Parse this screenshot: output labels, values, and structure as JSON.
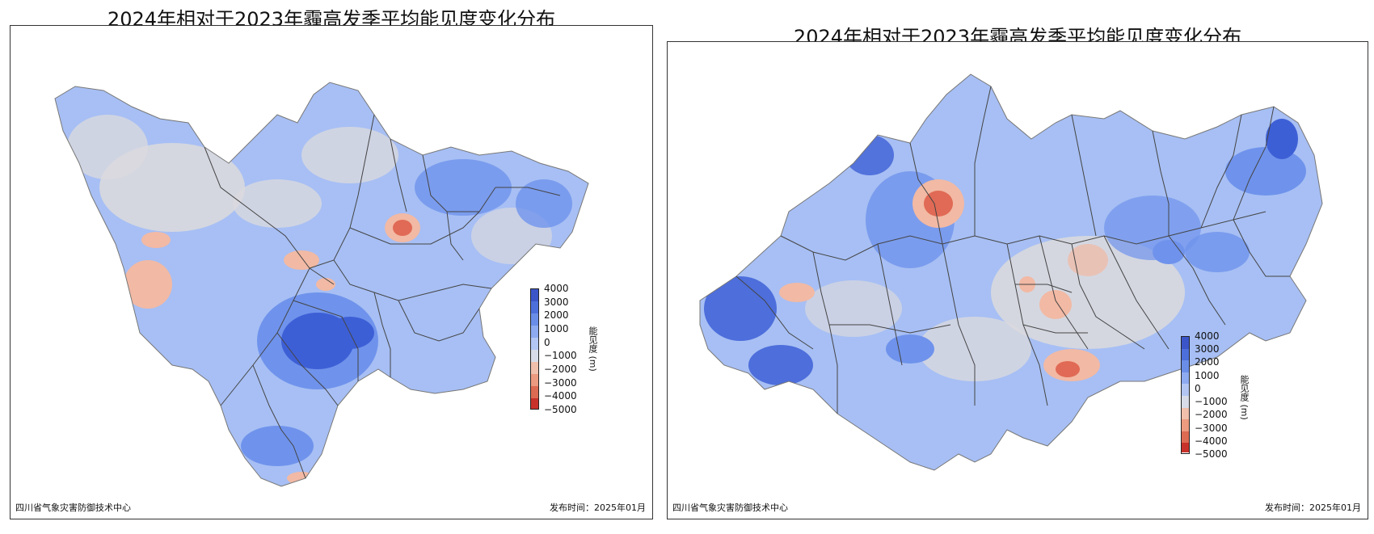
{
  "panels": [
    {
      "title": "2024年相对于2023年霾高发季平均能见度变化分布",
      "footer_left": "四川省气象灾害防御技术中心",
      "footer_right": "发布时间：2025年01月",
      "colorbar_label": "能见度 (m)"
    },
    {
      "title": "2024年相对于2023年霾高发季平均能见度变化分布",
      "footer_left": "四川省气象灾害防御技术中心",
      "footer_right": "发布时间：2025年01月",
      "colorbar_label": "能见度 (m)"
    }
  ],
  "colorbar": {
    "ticks": [
      "4000",
      "3000",
      "2000",
      "1000",
      "0",
      "−1000",
      "−2000",
      "−3000",
      "−4000",
      "−5000"
    ],
    "colors": [
      "#3b55c9",
      "#4d6fdb",
      "#6a8ee8",
      "#8eaaf0",
      "#b3c6f3",
      "#d7dce8",
      "#f0c0ac",
      "#ec9a80",
      "#dd6a52",
      "#c8322b"
    ]
  },
  "map_colors": {
    "strong_blue": "#3d5fd6",
    "blue": "#6f93ec",
    "light_blue": "#a7bff4",
    "gray": "#d9d9de",
    "light_red": "#f2b9a4",
    "red": "#e06a55",
    "border": "#444444"
  }
}
